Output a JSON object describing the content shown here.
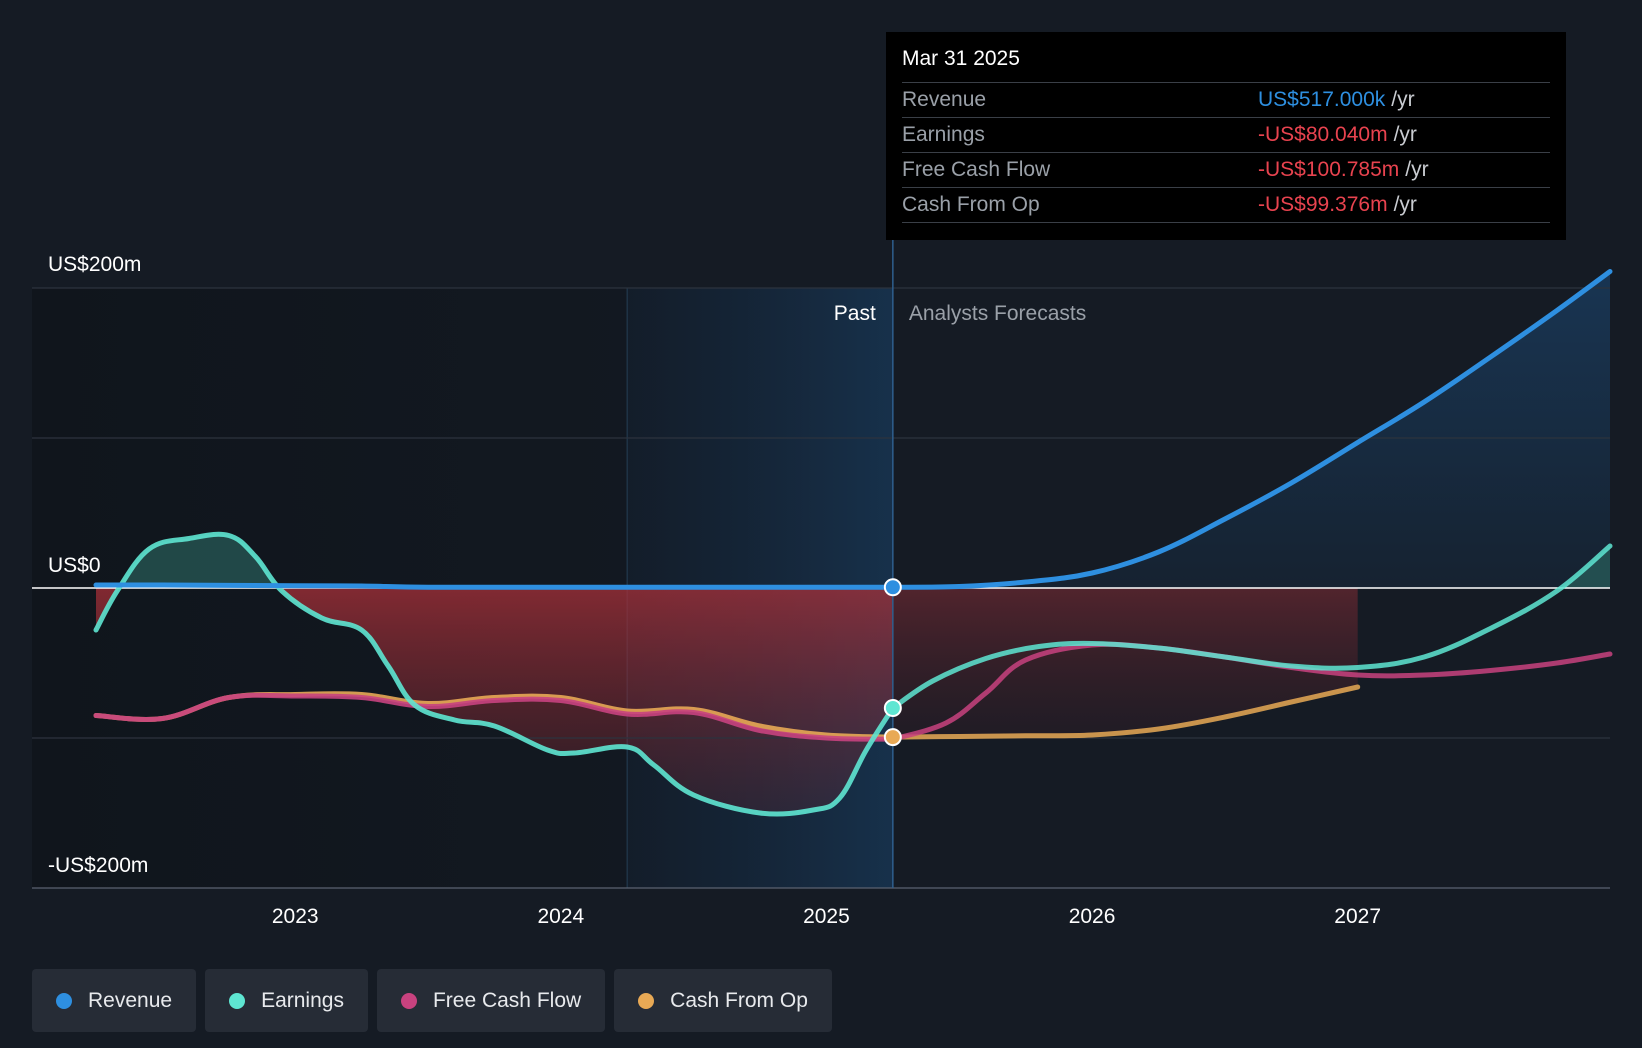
{
  "tooltip": {
    "date": "Mar 31 2025",
    "rows": [
      {
        "label": "Revenue",
        "value": "US$517.000k",
        "unit": "/yr",
        "color": "#2e8fe0"
      },
      {
        "label": "Earnings",
        "value": "-US$80.040m",
        "unit": "/yr",
        "color": "#e8434f"
      },
      {
        "label": "Free Cash Flow",
        "value": "-US$100.785m",
        "unit": "/yr",
        "color": "#e8434f"
      },
      {
        "label": "Cash From Op",
        "value": "-US$99.376m",
        "unit": "/yr",
        "color": "#e8434f"
      }
    ]
  },
  "legend": [
    {
      "label": "Revenue",
      "color": "#2e8fe0"
    },
    {
      "label": "Earnings",
      "color": "#5ee6d2"
    },
    {
      "label": "Free Cash Flow",
      "color": "#c8427f"
    },
    {
      "label": "Cash From Op",
      "color": "#e8a955"
    }
  ],
  "chart_data": {
    "type": "line",
    "y_tick_labels": [
      "US$200m",
      "US$0",
      "-US$200m"
    ],
    "x_tick_labels": [
      "2023",
      "2024",
      "2025",
      "2026",
      "2027"
    ],
    "ylim": [
      -200,
      200
    ],
    "xlim": [
      2022.25,
      2027.95
    ],
    "past_label": "Past",
    "forecast_label": "Analysts Forecasts",
    "divider_x": 2025.25,
    "highlight_start": 2024.25,
    "series": [
      {
        "name": "Revenue",
        "color": "#2e8fe0",
        "points": [
          [
            2022.25,
            2
          ],
          [
            2022.5,
            2
          ],
          [
            2023.0,
            1.5
          ],
          [
            2023.25,
            1.3
          ],
          [
            2023.5,
            0.5
          ],
          [
            2024.0,
            0.5
          ],
          [
            2024.5,
            0.5
          ],
          [
            2025.0,
            0.5
          ],
          [
            2025.25,
            0.5
          ],
          [
            2025.5,
            1
          ],
          [
            2025.75,
            4
          ],
          [
            2026.0,
            10
          ],
          [
            2026.25,
            24
          ],
          [
            2026.5,
            46
          ],
          [
            2026.75,
            70
          ],
          [
            2027.0,
            97
          ],
          [
            2027.25,
            124
          ],
          [
            2027.5,
            154
          ],
          [
            2027.75,
            185
          ],
          [
            2027.95,
            211
          ]
        ]
      },
      {
        "name": "Earnings",
        "color": "#5ee6d2",
        "points": [
          [
            2022.25,
            -28
          ],
          [
            2022.33,
            -2
          ],
          [
            2022.45,
            26
          ],
          [
            2022.6,
            33
          ],
          [
            2022.75,
            35
          ],
          [
            2022.85,
            21
          ],
          [
            2022.95,
            -2
          ],
          [
            2023.1,
            -20
          ],
          [
            2023.25,
            -28
          ],
          [
            2023.35,
            -52
          ],
          [
            2023.45,
            -78
          ],
          [
            2023.6,
            -88
          ],
          [
            2023.75,
            -92
          ],
          [
            2023.95,
            -108
          ],
          [
            2024.05,
            -110
          ],
          [
            2024.25,
            -106
          ],
          [
            2024.35,
            -118
          ],
          [
            2024.5,
            -138
          ],
          [
            2024.75,
            -150
          ],
          [
            2024.95,
            -148
          ],
          [
            2025.05,
            -140
          ],
          [
            2025.15,
            -108
          ],
          [
            2025.25,
            -80
          ],
          [
            2025.4,
            -62
          ],
          [
            2025.6,
            -47
          ],
          [
            2025.8,
            -39
          ],
          [
            2026.0,
            -37
          ],
          [
            2026.25,
            -40
          ],
          [
            2026.5,
            -46
          ],
          [
            2026.75,
            -52
          ],
          [
            2027.0,
            -53
          ],
          [
            2027.25,
            -46
          ],
          [
            2027.5,
            -27
          ],
          [
            2027.75,
            -2
          ],
          [
            2027.95,
            28
          ]
        ]
      },
      {
        "name": "Free Cash Flow",
        "color": "#c8427f",
        "points": [
          [
            2022.25,
            -85
          ],
          [
            2022.5,
            -87
          ],
          [
            2022.75,
            -73
          ],
          [
            2023.0,
            -72
          ],
          [
            2023.25,
            -73
          ],
          [
            2023.5,
            -79
          ],
          [
            2023.75,
            -75
          ],
          [
            2024.0,
            -75
          ],
          [
            2024.25,
            -84
          ],
          [
            2024.5,
            -83
          ],
          [
            2024.75,
            -95
          ],
          [
            2025.0,
            -100
          ],
          [
            2025.25,
            -100.8
          ],
          [
            2025.45,
            -90
          ],
          [
            2025.6,
            -70
          ],
          [
            2025.75,
            -48
          ],
          [
            2026.0,
            -38
          ],
          [
            2026.25,
            -40
          ],
          [
            2026.5,
            -46
          ],
          [
            2026.75,
            -53
          ],
          [
            2027.0,
            -58
          ],
          [
            2027.25,
            -58
          ],
          [
            2027.5,
            -55
          ],
          [
            2027.75,
            -50
          ],
          [
            2027.95,
            -44
          ]
        ]
      },
      {
        "name": "Cash From Op",
        "color": "#e8a955",
        "points": [
          [
            2022.25,
            -85
          ],
          [
            2022.5,
            -87
          ],
          [
            2022.75,
            -73
          ],
          [
            2023.0,
            -71
          ],
          [
            2023.25,
            -71
          ],
          [
            2023.5,
            -77
          ],
          [
            2023.75,
            -73
          ],
          [
            2024.0,
            -73
          ],
          [
            2024.25,
            -82
          ],
          [
            2024.5,
            -81
          ],
          [
            2024.75,
            -92
          ],
          [
            2025.0,
            -98
          ],
          [
            2025.25,
            -99.4
          ],
          [
            2025.5,
            -99
          ],
          [
            2025.75,
            -98.5
          ],
          [
            2026.0,
            -98
          ],
          [
            2026.25,
            -94
          ],
          [
            2026.5,
            -86
          ],
          [
            2026.75,
            -76
          ],
          [
            2027.0,
            -66
          ]
        ]
      }
    ]
  }
}
